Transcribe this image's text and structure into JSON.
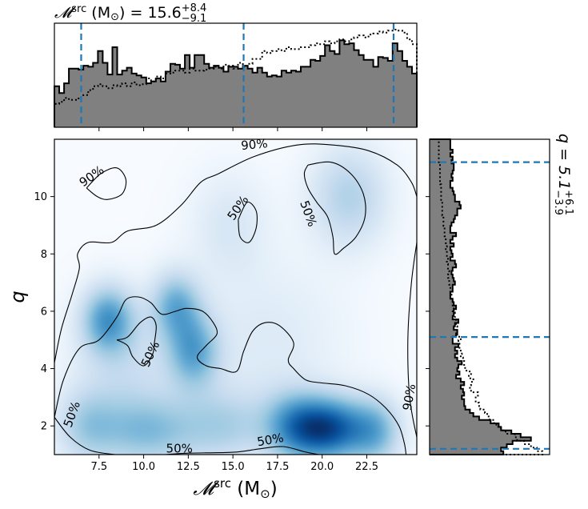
{
  "chart_data": {
    "type": "corner",
    "title": {
      "mc_prefix": "𝓜",
      "mc_sup": "src",
      "mc_mid": " (M",
      "mc_sun": "⊙",
      "mc_close": ") = 15.6",
      "mc_plus": "+8.4",
      "mc_minus": "−9.1",
      "q_prefix": "q = 5.1",
      "q_plus": "+6.1",
      "q_minus": "−3.9"
    },
    "xlabel": {
      "prefix": "𝓜",
      "sup": "src",
      "mid": " (M",
      "sun": "⊙",
      "close": ")"
    },
    "ylabel": "q",
    "xlim": [
      5.0,
      25.3
    ],
    "ylim": [
      1.0,
      12.0
    ],
    "xticks": [
      "7.5",
      "10.0",
      "12.5",
      "15.0",
      "17.5",
      "20.0",
      "22.5"
    ],
    "xtick_values": [
      7.5,
      10.0,
      12.5,
      15.0,
      17.5,
      20.0,
      22.5
    ],
    "yticks": [
      "2",
      "4",
      "6",
      "8",
      "10"
    ],
    "ytick_values": [
      2,
      4,
      6,
      8,
      10
    ],
    "quantile_lines": {
      "chirp_mass": [
        6.5,
        15.6,
        24.0
      ],
      "mass_ratio": [
        1.2,
        5.1,
        11.2
      ]
    },
    "colors": {
      "hist_fill": "#808080",
      "hist_edge": "#000000",
      "quantile": "#1f77b4",
      "density_colormap": "Blues"
    },
    "contour_levels": [
      "50%",
      "90%"
    ],
    "contour_labels": [
      {
        "text": "90%",
        "x": 16.2,
        "y": 11.8
      },
      {
        "text": "90%",
        "x": 7.1,
        "y": 10.7
      },
      {
        "text": "50%",
        "x": 15.3,
        "y": 9.6
      },
      {
        "text": "50%",
        "x": 19.2,
        "y": 9.4
      },
      {
        "text": "50%",
        "x": 10.4,
        "y": 4.5
      },
      {
        "text": "90%",
        "x": 24.9,
        "y": 3.0
      },
      {
        "text": "50%",
        "x": 6.0,
        "y": 2.4
      },
      {
        "text": "50%",
        "x": 12.0,
        "y": 1.2
      },
      {
        "text": "50%",
        "x": 17.1,
        "y": 1.5
      }
    ],
    "density_blobs": [
      {
        "x": 20.3,
        "y": 1.9,
        "sx": 1.5,
        "sy": 0.75,
        "w": 1.0
      },
      {
        "x": 18.3,
        "y": 2.0,
        "sx": 1.2,
        "sy": 0.85,
        "w": 0.45
      },
      {
        "x": 23.0,
        "y": 1.8,
        "sx": 1.0,
        "sy": 0.8,
        "w": 0.45
      },
      {
        "x": 8.0,
        "y": 5.7,
        "sx": 1.0,
        "sy": 0.8,
        "w": 0.62
      },
      {
        "x": 11.8,
        "y": 6.2,
        "sx": 0.95,
        "sy": 0.8,
        "w": 0.5
      },
      {
        "x": 12.8,
        "y": 4.6,
        "sx": 1.0,
        "sy": 0.9,
        "w": 0.55
      },
      {
        "x": 10.2,
        "y": 1.8,
        "sx": 2.0,
        "sy": 0.85,
        "w": 0.42
      },
      {
        "x": 6.8,
        "y": 2.0,
        "sx": 1.2,
        "sy": 0.9,
        "w": 0.3
      },
      {
        "x": 14.5,
        "y": 2.0,
        "sx": 1.7,
        "sy": 0.9,
        "w": 0.3
      },
      {
        "x": 21.5,
        "y": 10.0,
        "sx": 1.5,
        "sy": 1.2,
        "w": 0.32
      },
      {
        "x": 17.0,
        "y": 5.0,
        "sx": 3.0,
        "sy": 2.0,
        "w": 0.12
      },
      {
        "x": 14.8,
        "y": 9.0,
        "sx": 1.5,
        "sy": 1.3,
        "w": 0.14
      },
      {
        "x": 9.0,
        "y": 4.0,
        "sx": 2.0,
        "sy": 1.5,
        "w": 0.2
      }
    ],
    "contour_paths": [
      {
        "level": "90%",
        "points": [
          [
            5.0,
            4.2
          ],
          [
            5.4,
            5.4
          ],
          [
            6.0,
            6.6
          ],
          [
            6.4,
            7.5
          ],
          [
            6.3,
            8.0
          ],
          [
            6.9,
            8.4
          ],
          [
            8.2,
            8.4
          ],
          [
            9.1,
            8.8
          ],
          [
            10.7,
            9.0
          ],
          [
            12.1,
            9.7
          ],
          [
            13.2,
            10.5
          ],
          [
            14.2,
            10.8
          ],
          [
            16.2,
            11.4
          ],
          [
            18.6,
            11.8
          ],
          [
            20.6,
            11.8
          ],
          [
            22.6,
            11.6
          ],
          [
            24.2,
            11.1
          ],
          [
            25.0,
            10.5
          ],
          [
            25.3,
            10.0
          ]
        ]
      },
      {
        "level": "90%",
        "points": [
          [
            25.3,
            8.4
          ],
          [
            25.0,
            7.0
          ],
          [
            24.8,
            5.0
          ],
          [
            24.9,
            3.0
          ],
          [
            25.3,
            1.6
          ]
        ]
      },
      {
        "level": "90%",
        "points": [
          [
            6.8,
            10.3
          ],
          [
            7.6,
            10.8
          ],
          [
            8.5,
            11.0
          ],
          [
            9.0,
            10.6
          ],
          [
            8.8,
            10.1
          ],
          [
            8.0,
            9.9
          ],
          [
            7.4,
            10.0
          ],
          [
            6.8,
            10.3
          ]
        ]
      },
      {
        "level": "50%",
        "points": [
          [
            5.0,
            2.3
          ],
          [
            5.5,
            3.6
          ],
          [
            6.4,
            4.7
          ],
          [
            7.5,
            5.0
          ],
          [
            8.5,
            5.8
          ],
          [
            9.0,
            6.4
          ],
          [
            9.7,
            6.5
          ],
          [
            10.4,
            6.3
          ],
          [
            11.0,
            5.9
          ],
          [
            11.8,
            6.0
          ],
          [
            12.4,
            6.1
          ],
          [
            13.3,
            6.0
          ],
          [
            13.9,
            5.6
          ],
          [
            14.1,
            5.2
          ],
          [
            13.5,
            4.8
          ],
          [
            13.0,
            4.4
          ],
          [
            13.5,
            4.1
          ],
          [
            14.3,
            4.0
          ],
          [
            15.2,
            3.9
          ],
          [
            15.6,
            4.6
          ],
          [
            16.1,
            5.3
          ],
          [
            16.8,
            5.6
          ],
          [
            17.6,
            5.5
          ],
          [
            18.4,
            4.9
          ],
          [
            18.1,
            4.3
          ],
          [
            18.4,
            4.0
          ],
          [
            19.1,
            3.6
          ],
          [
            20.0,
            3.5
          ],
          [
            21.3,
            3.4
          ],
          [
            22.6,
            3.1
          ],
          [
            23.6,
            2.6
          ],
          [
            24.3,
            2.0
          ],
          [
            24.6,
            1.4
          ],
          [
            24.7,
            1.0
          ]
        ]
      },
      {
        "level": "50%",
        "points": [
          [
            5.0,
            2.3
          ],
          [
            5.9,
            1.6
          ],
          [
            7.0,
            1.15
          ],
          [
            8.4,
            1.0
          ]
        ]
      },
      {
        "level": "50%",
        "points": [
          [
            11.2,
            1.0
          ],
          [
            12.5,
            1.05
          ],
          [
            15.0,
            1.08
          ],
          [
            16.5,
            1.2
          ],
          [
            17.8,
            1.28
          ],
          [
            19.0,
            1.1
          ],
          [
            19.8,
            1.0
          ]
        ]
      },
      {
        "level": "50%",
        "points": [
          [
            8.5,
            5.0
          ],
          [
            9.1,
            5.1
          ],
          [
            9.8,
            5.6
          ],
          [
            10.4,
            5.8
          ],
          [
            10.7,
            5.5
          ],
          [
            10.6,
            4.9
          ],
          [
            10.5,
            4.5
          ],
          [
            10.0,
            4.1
          ],
          [
            9.4,
            4.4
          ],
          [
            9.1,
            4.8
          ],
          [
            8.5,
            5.0
          ]
        ]
      },
      {
        "level": "50%",
        "points": [
          [
            15.3,
            9.2
          ],
          [
            15.8,
            9.8
          ],
          [
            16.3,
            9.5
          ],
          [
            16.3,
            8.9
          ],
          [
            15.9,
            8.4
          ],
          [
            15.4,
            8.6
          ],
          [
            15.3,
            9.2
          ]
        ]
      },
      {
        "level": "50%",
        "points": [
          [
            19.2,
            11.1
          ],
          [
            20.5,
            11.2
          ],
          [
            21.6,
            10.8
          ],
          [
            22.3,
            10.1
          ],
          [
            22.4,
            9.3
          ],
          [
            21.9,
            8.6
          ],
          [
            21.2,
            8.2
          ],
          [
            20.7,
            8.0
          ],
          [
            20.6,
            8.6
          ],
          [
            20.3,
            9.3
          ],
          [
            19.7,
            9.8
          ],
          [
            19.2,
            10.3
          ],
          [
            19.0,
            10.8
          ],
          [
            19.2,
            11.1
          ]
        ]
      }
    ],
    "series": [
      {
        "name": "",
        "style": "filled",
        "panel": "chirp_mass_hist",
        "bin_edges_range": [
          5.0,
          25.3
        ],
        "values": [
          0.42,
          0.35,
          0.45,
          0.6,
          0.6,
          0.59,
          0.63,
          0.62,
          0.66,
          0.78,
          0.66,
          0.54,
          0.82,
          0.54,
          0.58,
          0.61,
          0.55,
          0.53,
          0.51,
          0.45,
          0.47,
          0.5,
          0.47,
          0.57,
          0.65,
          0.64,
          0.6,
          0.74,
          0.61,
          0.74,
          0.74,
          0.65,
          0.61,
          0.63,
          0.61,
          0.57,
          0.62,
          0.62,
          0.6,
          0.63,
          0.6,
          0.56,
          0.61,
          0.56,
          0.52,
          0.53,
          0.52,
          0.58,
          0.56,
          0.58,
          0.57,
          0.62,
          0.62,
          0.69,
          0.68,
          0.73,
          0.84,
          0.78,
          0.75,
          0.89,
          0.85,
          0.86,
          0.79,
          0.74,
          0.69,
          0.69,
          0.62,
          0.72,
          0.71,
          0.68,
          0.86,
          0.78,
          0.68,
          0.62,
          0.55
        ]
      },
      {
        "name": "",
        "style": "dotted",
        "panel": "chirp_mass_hist",
        "bin_edges_range": [
          5.0,
          25.3
        ],
        "values": [
          0.24,
          0.26,
          0.3,
          0.28,
          0.28,
          0.31,
          0.33,
          0.38,
          0.42,
          0.44,
          0.42,
          0.4,
          0.43,
          0.42,
          0.45,
          0.42,
          0.46,
          0.43,
          0.44,
          0.5,
          0.47,
          0.52,
          0.5,
          0.55,
          0.56,
          0.58,
          0.58,
          0.56,
          0.6,
          0.58,
          0.58,
          0.59,
          0.6,
          0.62,
          0.6,
          0.64,
          0.63,
          0.6,
          0.66,
          0.62,
          0.65,
          0.7,
          0.7,
          0.78,
          0.76,
          0.78,
          0.8,
          0.78,
          0.82,
          0.8,
          0.8,
          0.82,
          0.82,
          0.84,
          0.86,
          0.85,
          0.88,
          0.86,
          0.88,
          0.9,
          0.88,
          0.9,
          0.92,
          0.94,
          0.92,
          0.95,
          0.96,
          0.98,
          0.97,
          0.99,
          1.0,
          0.99,
          0.97,
          0.9,
          0.85
        ]
      },
      {
        "name": "",
        "style": "filled",
        "panel": "mass_ratio_hist",
        "bin_edges_range": [
          1.0,
          12.0
        ],
        "values": [
          0.64,
          0.62,
          0.67,
          0.72,
          0.88,
          0.79,
          0.71,
          0.62,
          0.6,
          0.53,
          0.43,
          0.38,
          0.35,
          0.31,
          0.3,
          0.3,
          0.28,
          0.3,
          0.29,
          0.27,
          0.3,
          0.27,
          0.23,
          0.26,
          0.24,
          0.25,
          0.28,
          0.24,
          0.22,
          0.24,
          0.22,
          0.25,
          0.2,
          0.2,
          0.23,
          0.24,
          0.21,
          0.22,
          0.25,
          0.2,
          0.21,
          0.21,
          0.23,
          0.21,
          0.2,
          0.18,
          0.18,
          0.2,
          0.2,
          0.22,
          0.21,
          0.2,
          0.19,
          0.2,
          0.23,
          0.22,
          0.18,
          0.2,
          0.19,
          0.18,
          0.21,
          0.18,
          0.2,
          0.23,
          0.18,
          0.18,
          0.19,
          0.21,
          0.22,
          0.24,
          0.24,
          0.27,
          0.26,
          0.22,
          0.22,
          0.21,
          0.2,
          0.18,
          0.18,
          0.2,
          0.19,
          0.2,
          0.21,
          0.21,
          0.19,
          0.2,
          0.18,
          0.2,
          0.18,
          0.18,
          0.18
        ]
      },
      {
        "name": "",
        "style": "dotted",
        "panel": "mass_ratio_hist",
        "bin_edges_range": [
          1.0,
          12.0
        ],
        "values": [
          0.98,
          0.93,
          0.88,
          0.82,
          0.76,
          0.74,
          0.66,
          0.62,
          0.58,
          0.56,
          0.52,
          0.5,
          0.48,
          0.44,
          0.43,
          0.4,
          0.4,
          0.42,
          0.36,
          0.35,
          0.36,
          0.38,
          0.34,
          0.36,
          0.32,
          0.3,
          0.3,
          0.29,
          0.27,
          0.28,
          0.26,
          0.26,
          0.25,
          0.27,
          0.24,
          0.24,
          0.24,
          0.23,
          0.23,
          0.22,
          0.22,
          0.2,
          0.21,
          0.2,
          0.2,
          0.19,
          0.19,
          0.18,
          0.18,
          0.17,
          0.17,
          0.16,
          0.17,
          0.16,
          0.16,
          0.15,
          0.16,
          0.15,
          0.15,
          0.14,
          0.15,
          0.14,
          0.14,
          0.13,
          0.13,
          0.13,
          0.12,
          0.12,
          0.12,
          0.11,
          0.11,
          0.11,
          0.11,
          0.1,
          0.1,
          0.1,
          0.1,
          0.1,
          0.09,
          0.09,
          0.09,
          0.09,
          0.09,
          0.09,
          0.08,
          0.08,
          0.08,
          0.08,
          0.08,
          0.08,
          0.08
        ]
      }
    ]
  }
}
